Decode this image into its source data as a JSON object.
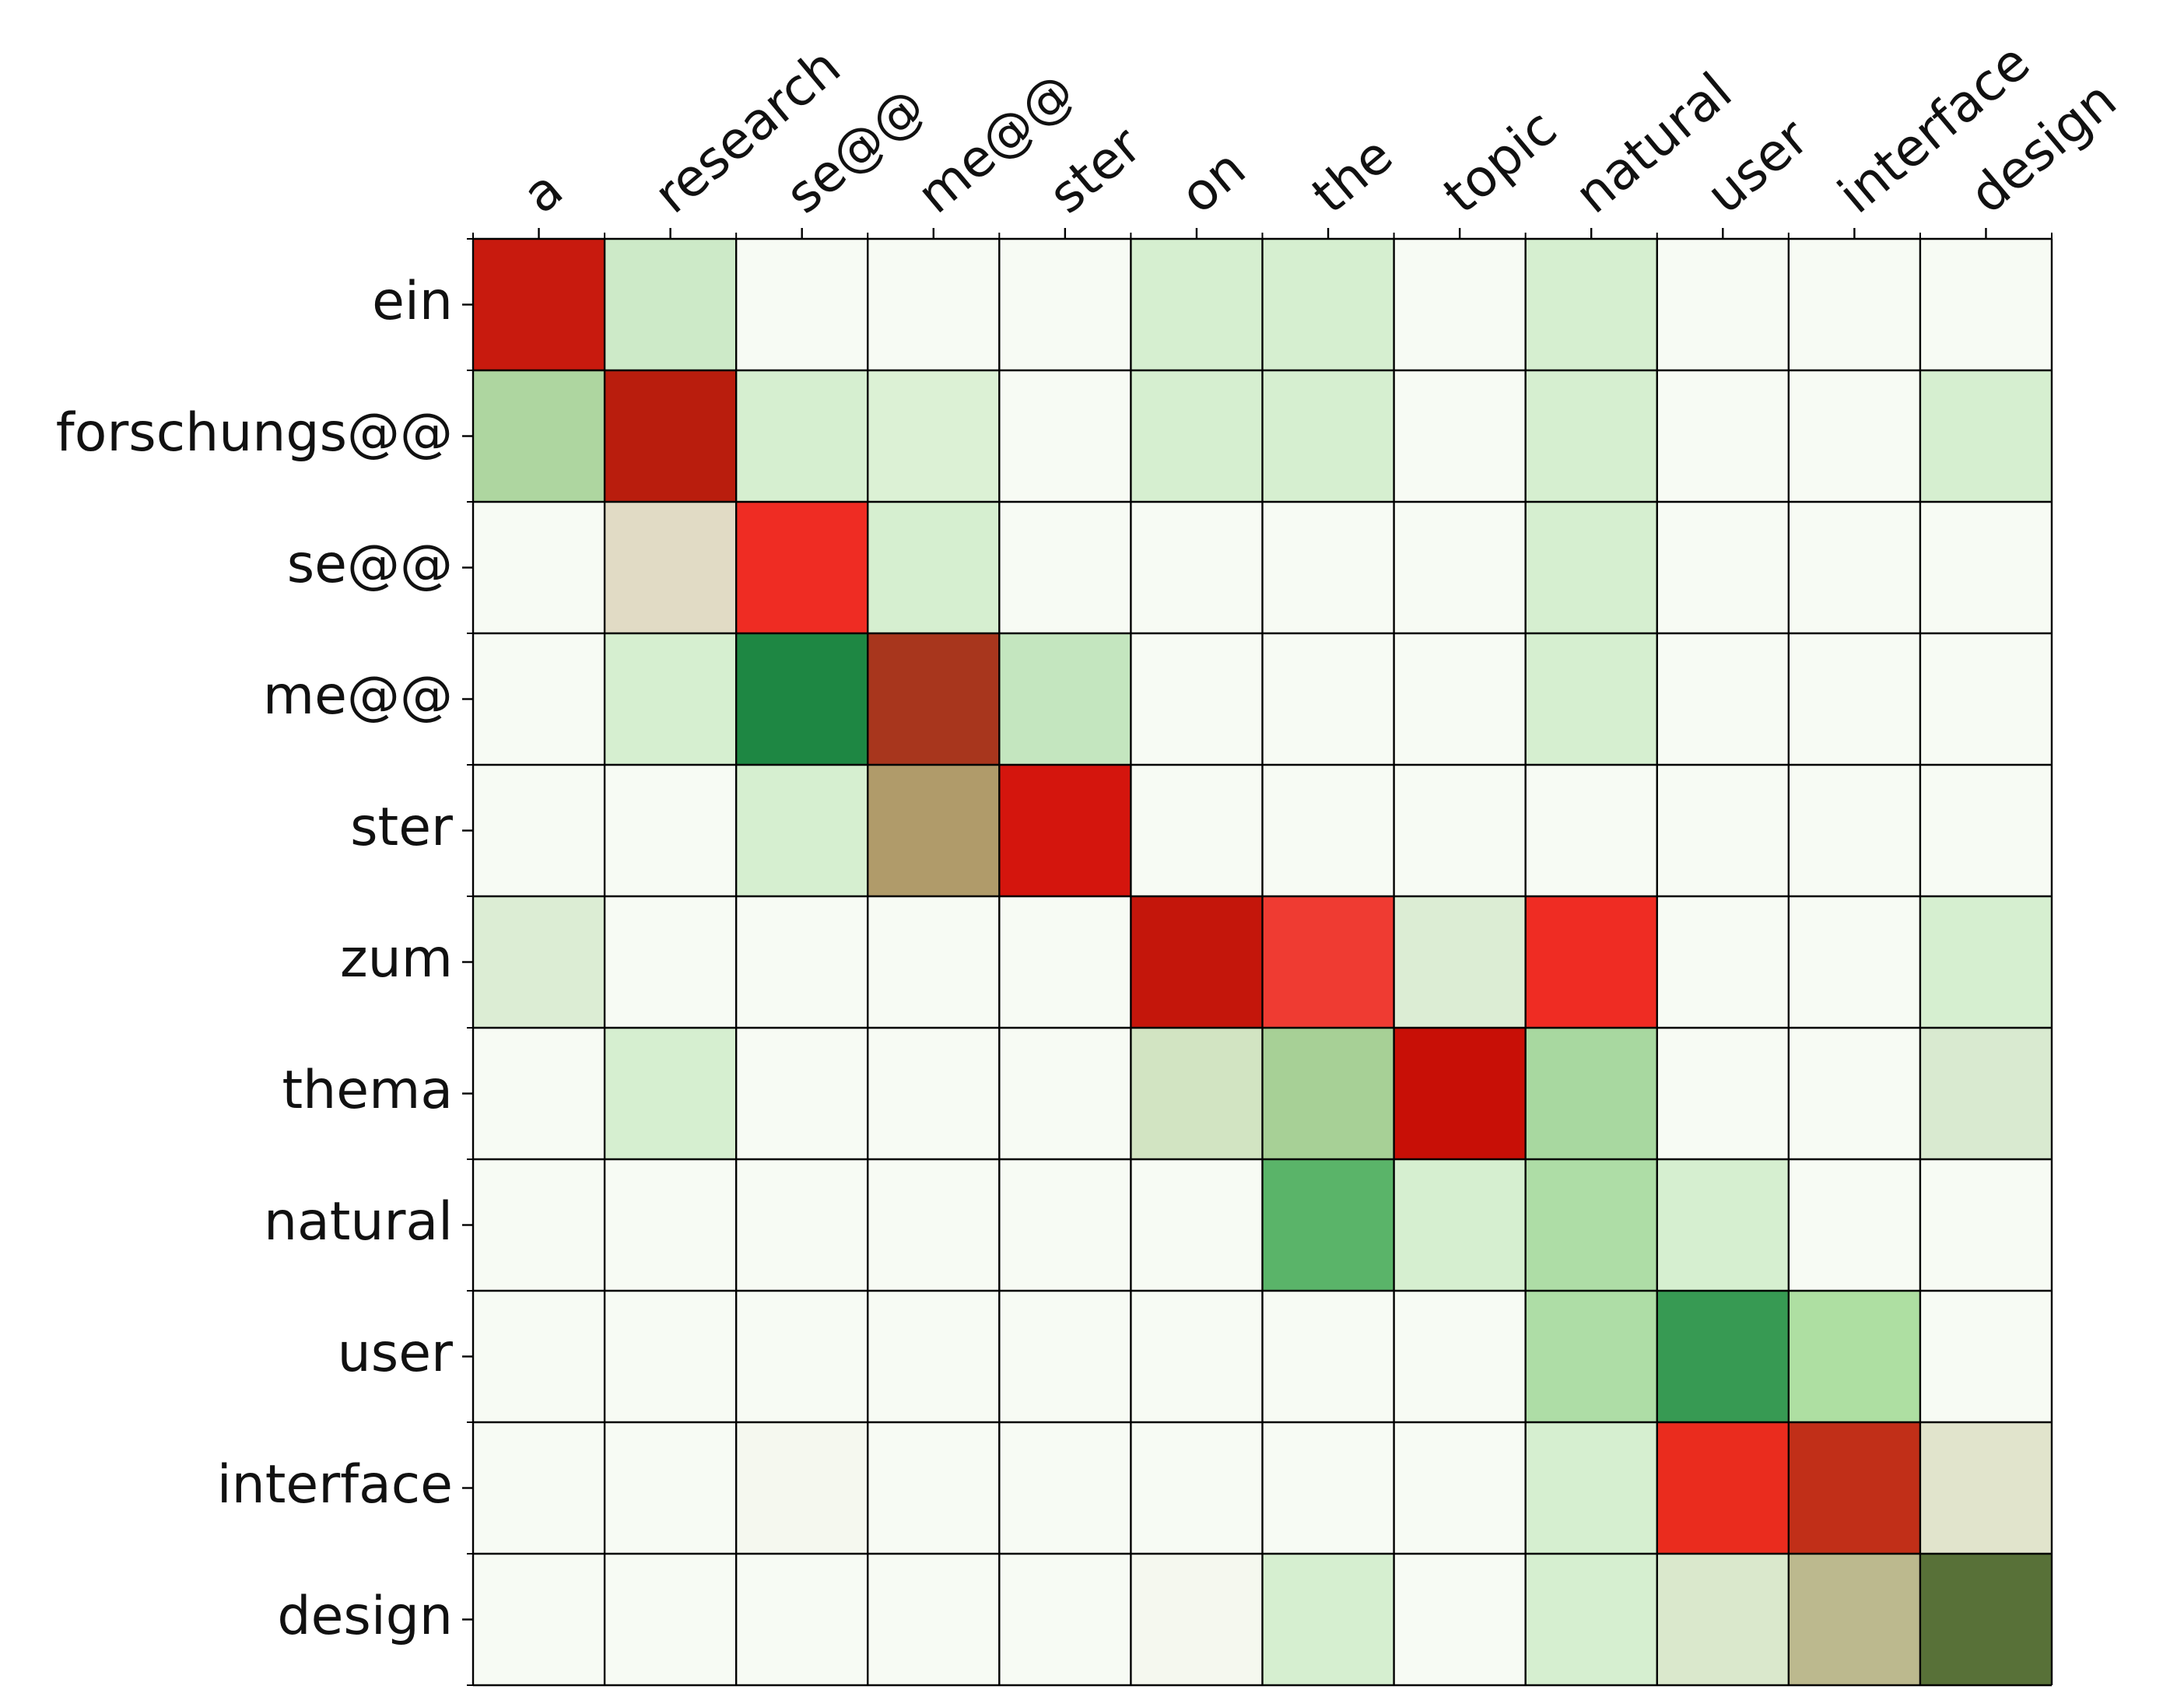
{
  "chart_data": {
    "type": "heatmap",
    "title": "",
    "xlabel": "",
    "ylabel": "",
    "x_labels": [
      "a",
      "research",
      "se@@",
      "me@@",
      "ster",
      "on",
      "the",
      "topic",
      "natural",
      "user",
      "interface",
      "design"
    ],
    "y_labels": [
      "ein",
      "forschungs@@",
      "se@@",
      "me@@",
      "ster",
      "zum",
      "thema",
      "natural",
      "user",
      "interface",
      "design"
    ],
    "grid": true,
    "x_axis_position": "top",
    "cell_colors": [
      [
        "#c81a0e",
        "#cdeac8",
        "#f7fbf4",
        "#f7fbf4",
        "#f7fbf4",
        "#d6efd0",
        "#d6efd0",
        "#f7fbf4",
        "#d6efd0",
        "#f7fbf4",
        "#f7fbf4",
        "#f7fbf4"
      ],
      [
        "#aed6a0",
        "#b91d0d",
        "#d6efd0",
        "#dcf1d5",
        "#f7fbf4",
        "#d6efd0",
        "#d6efd0",
        "#f7fbf4",
        "#d6efd0",
        "#f7fbf4",
        "#f7fbf4",
        "#d6efd0"
      ],
      [
        "#f7fbf4",
        "#e1dbc5",
        "#ef2c23",
        "#d6efd0",
        "#f7fbf4",
        "#f7fbf4",
        "#f7fbf4",
        "#f7fbf4",
        "#d6efd0",
        "#f7fbf4",
        "#f7fbf4",
        "#f7fbf4"
      ],
      [
        "#f7fbf4",
        "#d6efd0",
        "#1e8743",
        "#a8361d",
        "#c4e6bf",
        "#f7fbf4",
        "#f7fbf4",
        "#f7fbf4",
        "#d6efd0",
        "#f7fbf4",
        "#f7fbf4",
        "#f7fbf4"
      ],
      [
        "#f7fbf4",
        "#f7fbf4",
        "#d6efd0",
        "#b09b6a",
        "#d4150d",
        "#f7fbf4",
        "#f7fbf4",
        "#f7fbf4",
        "#f7fbf4",
        "#f7fbf4",
        "#f7fbf4",
        "#f7fbf4"
      ],
      [
        "#dcedd4",
        "#f7fbf4",
        "#f7fbf4",
        "#f7fbf4",
        "#f7fbf4",
        "#c4160b",
        "#ef3b32",
        "#dcedd4",
        "#ef2c23",
        "#f7fbf4",
        "#f7fbf4",
        "#d6efd0"
      ],
      [
        "#f7fbf4",
        "#d6efd0",
        "#f7fbf4",
        "#f7fbf4",
        "#f7fbf4",
        "#d2e4c2",
        "#a7d096",
        "#c80f06",
        "#a8d8a0",
        "#f7fbf4",
        "#f7fbf4",
        "#d9ead0"
      ],
      [
        "#f7fbf4",
        "#f7fbf4",
        "#f7fbf4",
        "#f7fbf4",
        "#f7fbf4",
        "#f7fbf4",
        "#5ab469",
        "#d6efd0",
        "#aedda6",
        "#d6efd0",
        "#f7fbf4",
        "#f7fbf4"
      ],
      [
        "#f7fbf4",
        "#f7fbf4",
        "#f7fbf4",
        "#f7fbf4",
        "#f7fbf4",
        "#f7fbf4",
        "#f7fbf4",
        "#f7fbf4",
        "#aedda6",
        "#379a53",
        "#aedfa2",
        "#f7fbf4"
      ],
      [
        "#f7fbf4",
        "#f7fbf4",
        "#f5f8ef",
        "#f7fbf4",
        "#f7fbf4",
        "#f7fbf4",
        "#f7fbf4",
        "#f7fbf4",
        "#d6efd0",
        "#ea2c1e",
        "#c12f18",
        "#e1e4cc"
      ],
      [
        "#f7fbf4",
        "#f7fbf4",
        "#f7fbf4",
        "#f7fbf4",
        "#f7fbf4",
        "#f5f8ef",
        "#d6efd0",
        "#f7fbf4",
        "#d6efd0",
        "#dae8cc",
        "#bcb98e",
        "#587138"
      ]
    ]
  }
}
